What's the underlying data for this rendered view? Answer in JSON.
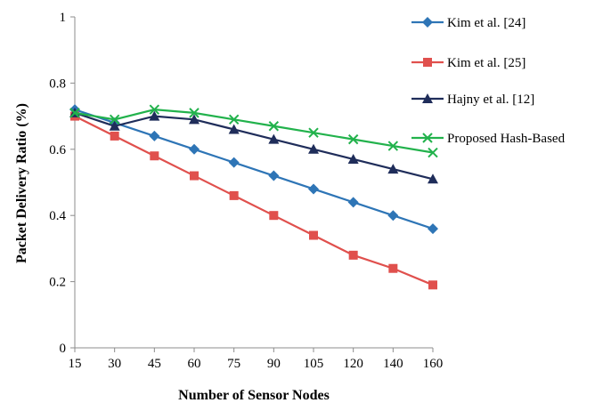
{
  "chart_data": {
    "type": "line",
    "title": "",
    "xlabel": "Number  of Sensor Nodes",
    "ylabel": "Packet Delivery Ratio (%)",
    "categories": [
      "15",
      "30",
      "45",
      "60",
      "75",
      "90",
      "105",
      "120",
      "140",
      "160"
    ],
    "ylim": [
      0,
      1
    ],
    "yticks": [
      "0",
      "0.2",
      "0.4",
      "0.6",
      "0.8",
      "1"
    ],
    "grid": false,
    "legend_position": "right",
    "series": [
      {
        "name": "Kim et al. [24]",
        "color": "#2e75b6",
        "marker": "diamond",
        "values": [
          0.72,
          0.68,
          0.64,
          0.6,
          0.56,
          0.52,
          0.48,
          0.44,
          0.4,
          0.36
        ]
      },
      {
        "name": "Kim et al. [25]",
        "color": "#e0504d",
        "marker": "square",
        "values": [
          0.7,
          0.64,
          0.58,
          0.52,
          0.46,
          0.4,
          0.34,
          0.28,
          0.24,
          0.19
        ]
      },
      {
        "name": "Hajny et al. [12]",
        "color": "#1f2d5a",
        "marker": "triangle",
        "values": [
          0.71,
          0.67,
          0.7,
          0.69,
          0.66,
          0.63,
          0.6,
          0.57,
          0.54,
          0.51
        ]
      },
      {
        "name": "Proposed Hash-Based",
        "color": "#22b24c",
        "marker": "x",
        "values": [
          0.71,
          0.69,
          0.72,
          0.71,
          0.69,
          0.67,
          0.65,
          0.63,
          0.61,
          0.59
        ]
      }
    ]
  }
}
